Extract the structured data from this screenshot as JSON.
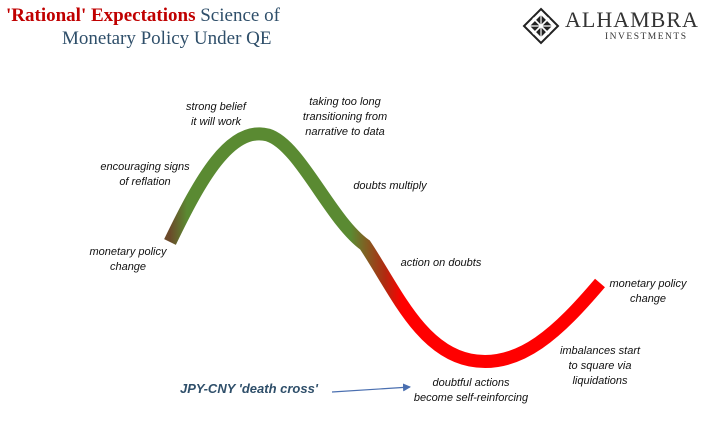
{
  "title": {
    "accent": "'Rational' Expectations",
    "rest": "Science of",
    "line2": "Monetary Policy Under QE"
  },
  "logo": {
    "name": "ALHAMBRA",
    "sub": "INVESTMENTS",
    "icon": "diamond-lattice-icon"
  },
  "colors": {
    "green": "#5a8a32",
    "red": "#ff0000",
    "title": "#2f4f6a",
    "accent": "#c00000",
    "arrow": "#4a6fb0"
  },
  "labels": [
    "monetary policy\nchange",
    "encouraging signs\nof reflation",
    "strong belief\nit will work",
    "taking too long\ntransitioning from\nnarrative to data",
    "doubts multiply",
    "action on doubts",
    "imbalances start\nto square via\nliquidations",
    "doubtful actions\nbecome self-reinforcing",
    "monetary policy\nchange"
  ],
  "callout": "JPY-CNY 'death cross'"
}
